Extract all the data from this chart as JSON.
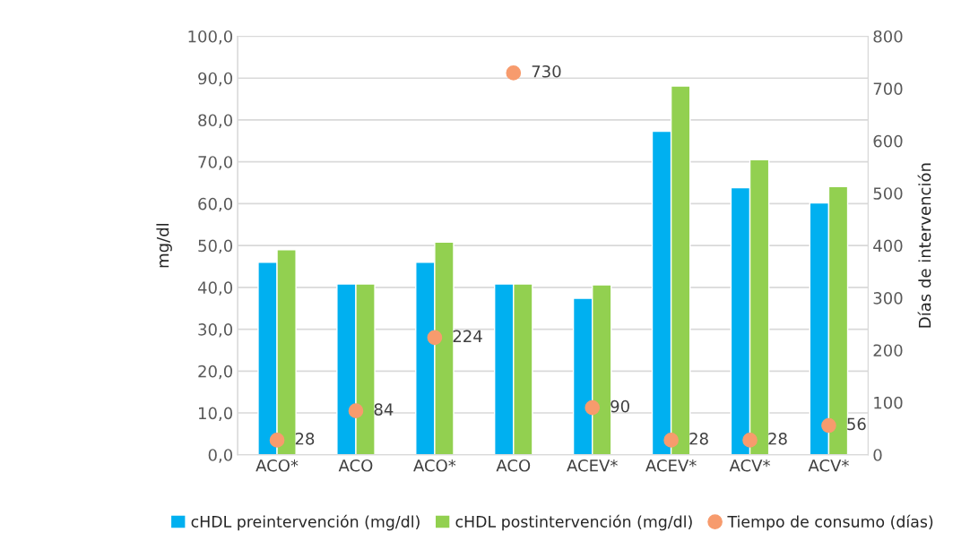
{
  "chart_data": {
    "type": "bar",
    "categories": [
      "ACO*",
      "ACO",
      "ACO*",
      "ACO",
      "ACEV*",
      "ACEV*",
      "ACV*",
      "ACV*"
    ],
    "series": [
      {
        "name": "cHDL preintervención (mg/dl)",
        "color": "#00b0f0",
        "values": [
          46.0,
          40.8,
          46.0,
          40.8,
          37.4,
          77.3,
          63.8,
          60.2
        ]
      },
      {
        "name": "cHDL postintervención (mg/dl)",
        "color": "#92d050",
        "values": [
          49.0,
          40.8,
          50.8,
          40.8,
          40.6,
          88.1,
          70.5,
          64.1
        ]
      },
      {
        "name": "Tiempo de consumo (días)",
        "type": "scatter",
        "axis": "y2",
        "color": "#f79b6d",
        "marker": "circle",
        "values": [
          28,
          84,
          224,
          730,
          90,
          28,
          28,
          56
        ],
        "value_labels": [
          "28",
          "84",
          "224",
          "730",
          "90",
          "28",
          "28",
          "56"
        ]
      }
    ],
    "ylabel": "mg/dl",
    "y2label": "Días de intervención",
    "ylim": [
      0,
      100
    ],
    "yticks": [
      {
        "value": 0,
        "label": "0,0"
      },
      {
        "value": 10,
        "label": "10,0"
      },
      {
        "value": 20,
        "label": "20,0"
      },
      {
        "value": 30,
        "label": "30,0"
      },
      {
        "value": 40,
        "label": "40,0"
      },
      {
        "value": 50,
        "label": "50,0"
      },
      {
        "value": 60,
        "label": "60,0"
      },
      {
        "value": 70,
        "label": "70,0"
      },
      {
        "value": 80,
        "label": "80,0"
      },
      {
        "value": 90,
        "label": "90,0"
      },
      {
        "value": 100,
        "label": "100,0"
      }
    ],
    "y2lim": [
      0,
      800
    ],
    "y2ticks": [
      0,
      100,
      200,
      300,
      400,
      500,
      600,
      700,
      800
    ],
    "grid": "y",
    "legend": "bottom"
  }
}
